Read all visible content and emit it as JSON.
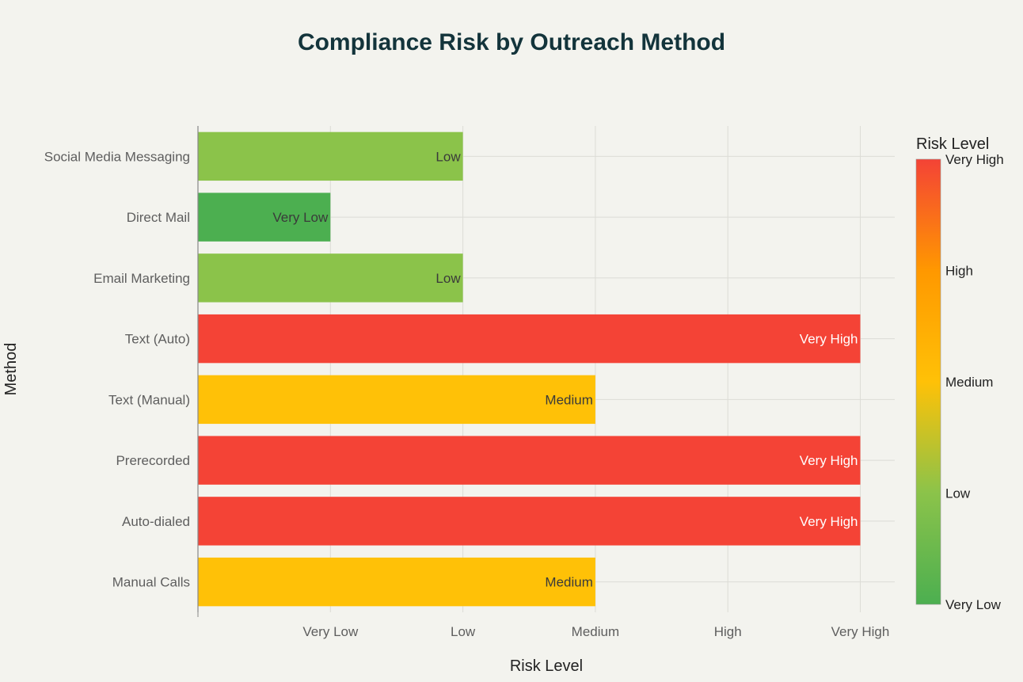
{
  "chart_data": {
    "type": "bar",
    "orientation": "horizontal",
    "title": "Compliance Risk by Outreach Method",
    "xlabel": "Risk Level",
    "ylabel": "Method",
    "xlim": [
      0,
      5.26
    ],
    "x_ticks": [
      {
        "value": 1,
        "label": "Very Low"
      },
      {
        "value": 2,
        "label": "Low"
      },
      {
        "value": 3,
        "label": "Medium"
      },
      {
        "value": 4,
        "label": "High"
      },
      {
        "value": 5,
        "label": "Very High"
      }
    ],
    "categories": [
      "Social Media Messaging",
      "Direct Mail",
      "Email Marketing",
      "Text (Auto)",
      "Text (Manual)",
      "Prerecorded",
      "Auto-dialed",
      "Manual Calls"
    ],
    "values": [
      2,
      1,
      2,
      5,
      3,
      5,
      5,
      3
    ],
    "bar_labels": [
      "Low",
      "Very Low",
      "Low",
      "Very High",
      "Medium",
      "Very High",
      "Very High",
      "Medium"
    ],
    "grid": true,
    "colorbar": {
      "title": "Risk Level",
      "ticks": [
        "Very High",
        "High",
        "Medium",
        "Low",
        "Very Low"
      ],
      "colors": {
        "1": "#4caf50",
        "2": "#8bc34a",
        "3": "#ffc107",
        "4": "#ff9800",
        "5": "#f44336"
      },
      "placement": "right"
    }
  }
}
